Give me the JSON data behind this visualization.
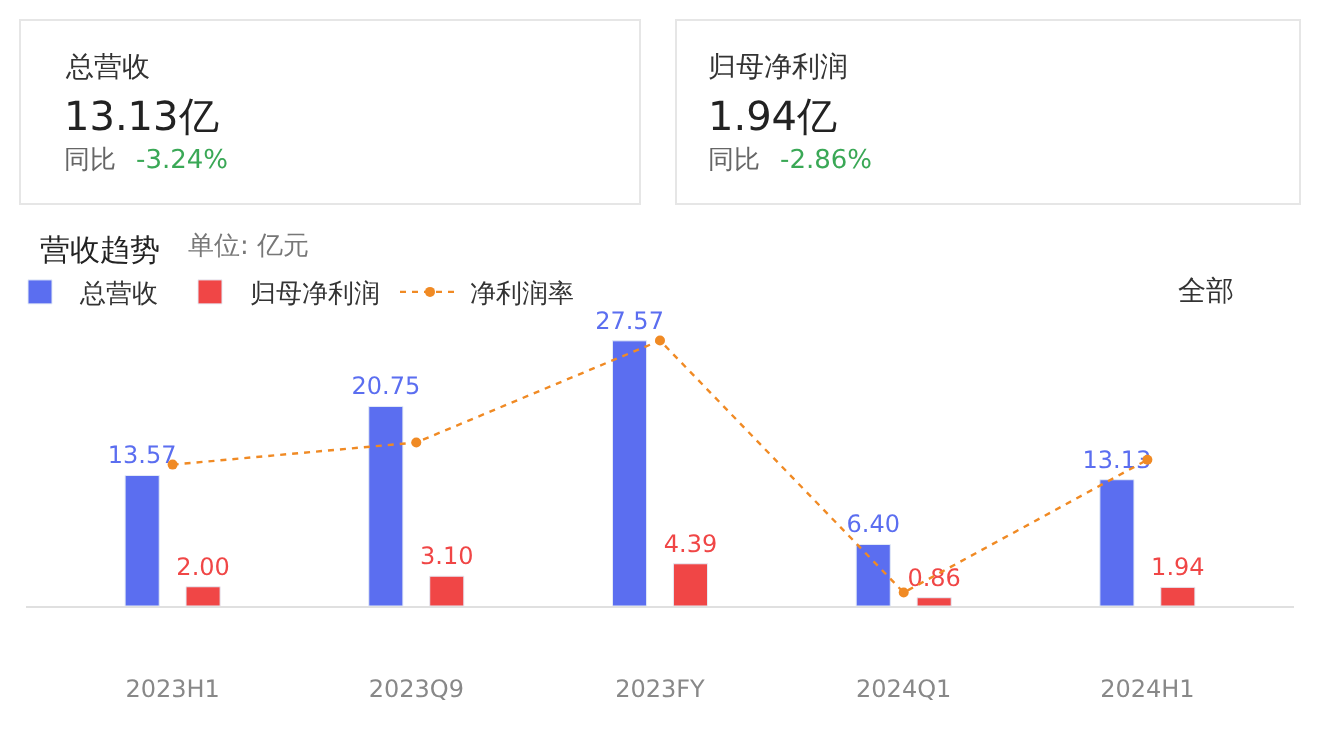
{
  "chart_data": {
    "type": "bar",
    "title": "营收趋势",
    "subtitle": "单位: 亿元",
    "annotations": [
      "总营收",
      "13.13亿",
      "同比",
      "-3.24%",
      "归母净利润",
      "1.94亿",
      "同比",
      "-2.86%",
      "全部"
    ],
    "categories": [
      "2023H1",
      "2023Q9",
      "2023FY",
      "2024Q1",
      "2024H1"
    ],
    "series": [
      {
        "name": "总营收",
        "color": "#5b6ef0",
        "values": [
          13.57,
          20.75,
          27.57,
          6.4,
          13.13
        ],
        "value_labels": [
          "13.57",
          "20.75",
          "27.57",
          "6.40",
          "13.13"
        ]
      },
      {
        "name": "归母净利润",
        "color": "#f04646",
        "values": [
          2.0,
          3.1,
          4.39,
          0.86,
          1.94
        ],
        "value_labels": [
          "2.00",
          "3.10",
          "4.39",
          "0.86",
          "1.94"
        ]
      },
      {
        "name": "净利润率",
        "type": "line",
        "color": "#f08a24",
        "marker": "circle",
        "line_style": "dotted",
        "values": [
          14.7,
          17.0,
          27.6,
          1.4,
          15.2
        ]
      }
    ],
    "legend": "top left",
    "tick_labels": "x"
  }
}
